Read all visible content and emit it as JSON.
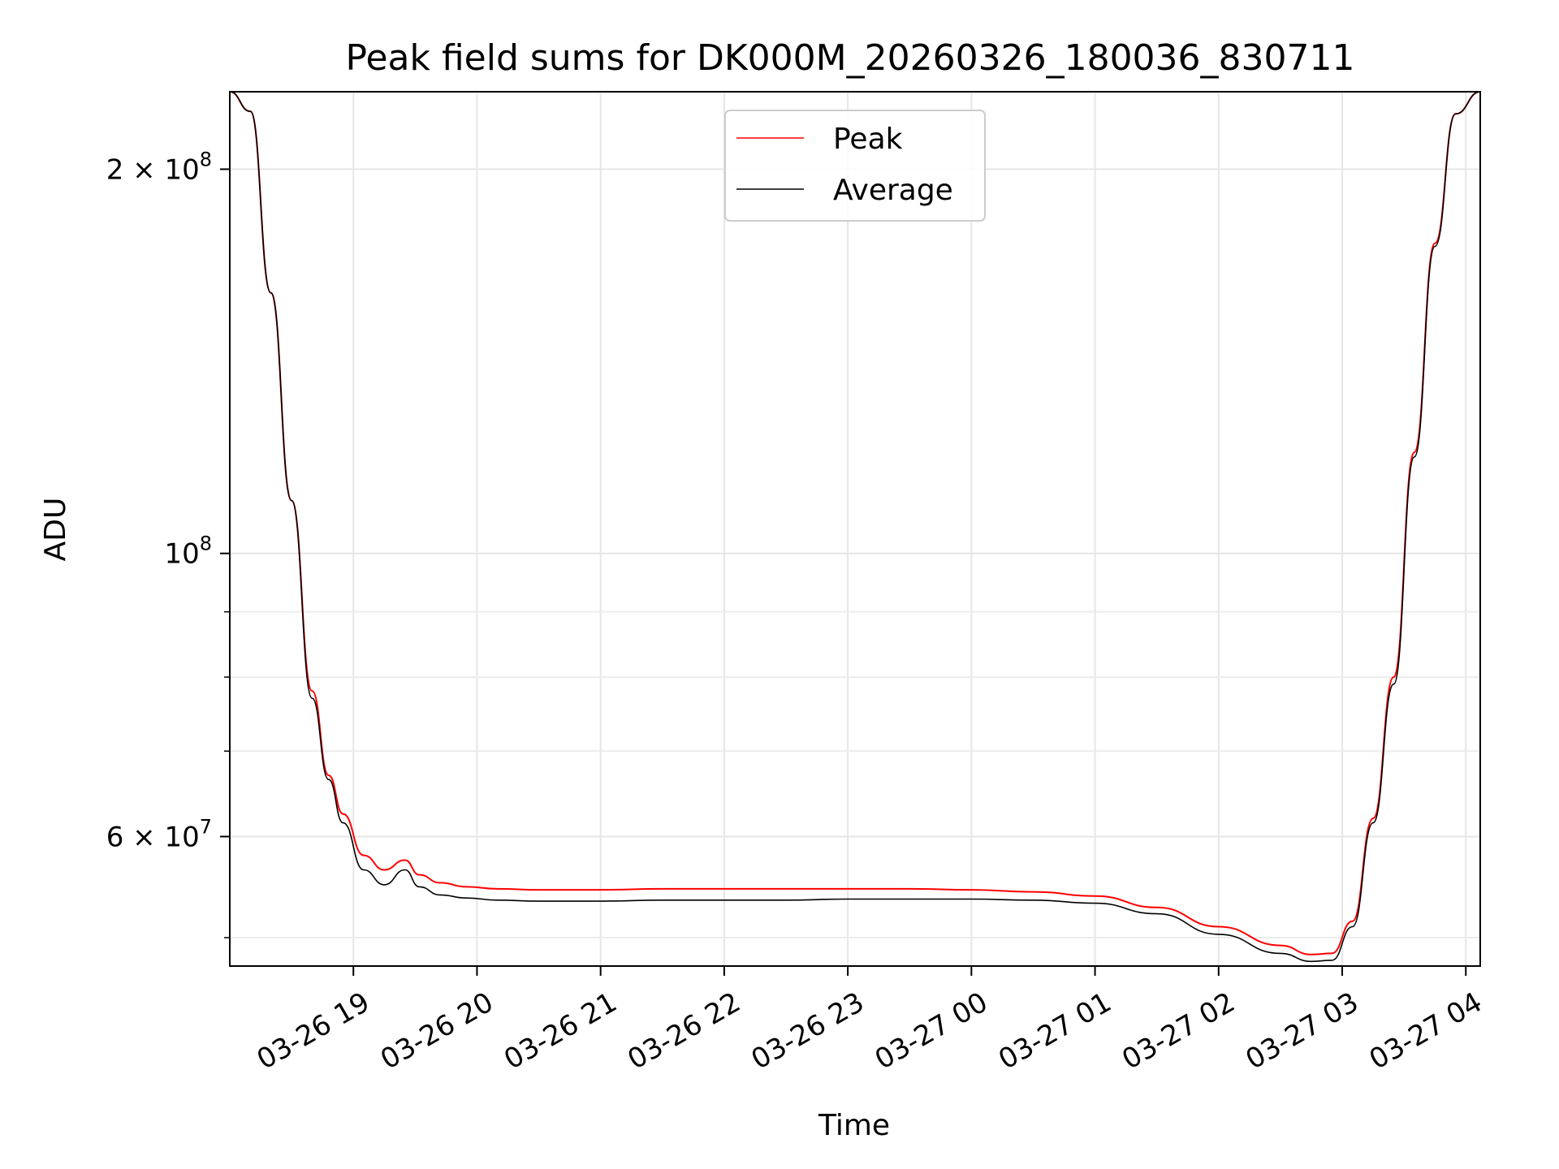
{
  "chart_data": {
    "type": "line",
    "title": "Peak field sums for DK000M_20260326_180036_830711",
    "xlabel": "Time",
    "ylabel": "ADU",
    "yscale": "log",
    "ylim": [
      47500000,
      230000000
    ],
    "xlim": [
      "2026-03-26 18:00",
      "2026-03-27 04:07"
    ],
    "grid": true,
    "legend_position": "upper center",
    "x_ticks": [
      "03-26 19",
      "03-26 20",
      "03-26 21",
      "03-26 22",
      "03-26 23",
      "03-27 00",
      "03-27 01",
      "03-27 02",
      "03-27 03",
      "03-27 04"
    ],
    "y_ticks": [
      {
        "value": 200000000,
        "mantissa": "2",
        "exp": "8"
      },
      {
        "value": 100000000,
        "mantissa": "",
        "exp": "8"
      },
      {
        "value": 60000000,
        "mantissa": "6",
        "exp": "7"
      }
    ],
    "y_minor_ticks": [
      50000000,
      70000000,
      80000000,
      90000000
    ],
    "series": [
      {
        "name": "Peak",
        "color": "#ff0000",
        "x": [
          "2026-03-26 18:00",
          "2026-03-26 18:10",
          "2026-03-26 18:20",
          "2026-03-26 18:30",
          "2026-03-26 18:40",
          "2026-03-26 18:48",
          "2026-03-26 18:55",
          "2026-03-26 19:05",
          "2026-03-26 19:15",
          "2026-03-26 19:25",
          "2026-03-26 19:32",
          "2026-03-26 19:42",
          "2026-03-26 19:55",
          "2026-03-26 20:10",
          "2026-03-26 20:30",
          "2026-03-26 21:00",
          "2026-03-26 21:30",
          "2026-03-26 22:00",
          "2026-03-26 22:30",
          "2026-03-26 23:00",
          "2026-03-26 23:30",
          "2026-03-27 00:00",
          "2026-03-27 00:30",
          "2026-03-27 01:00",
          "2026-03-27 01:30",
          "2026-03-27 02:00",
          "2026-03-27 02:30",
          "2026-03-27 02:45",
          "2026-03-27 02:55",
          "2026-03-27 03:05",
          "2026-03-27 03:15",
          "2026-03-27 03:25",
          "2026-03-27 03:35",
          "2026-03-27 03:45",
          "2026-03-27 03:55",
          "2026-03-27 04:07"
        ],
        "values": [
          230000000,
          222000000,
          160000000,
          110000000,
          78000000,
          67000000,
          62500000,
          58000000,
          56500000,
          57500000,
          56000000,
          55200000,
          54800000,
          54600000,
          54500000,
          54500000,
          54600000,
          54600000,
          54600000,
          54600000,
          54600000,
          54500000,
          54300000,
          53900000,
          52800000,
          51000000,
          49300000,
          48500000,
          48600000,
          51500000,
          62000000,
          80000000,
          120000000,
          175000000,
          221000000,
          230000000
        ]
      },
      {
        "name": "Average",
        "color": "#000000",
        "x": [
          "2026-03-26 18:00",
          "2026-03-26 18:10",
          "2026-03-26 18:20",
          "2026-03-26 18:30",
          "2026-03-26 18:40",
          "2026-03-26 18:48",
          "2026-03-26 18:55",
          "2026-03-26 19:05",
          "2026-03-26 19:15",
          "2026-03-26 19:25",
          "2026-03-26 19:32",
          "2026-03-26 19:42",
          "2026-03-26 19:55",
          "2026-03-26 20:10",
          "2026-03-26 20:30",
          "2026-03-26 21:00",
          "2026-03-26 21:30",
          "2026-03-26 22:00",
          "2026-03-26 22:30",
          "2026-03-26 23:00",
          "2026-03-26 23:30",
          "2026-03-27 00:00",
          "2026-03-27 00:30",
          "2026-03-27 01:00",
          "2026-03-27 01:30",
          "2026-03-27 02:00",
          "2026-03-27 02:30",
          "2026-03-27 02:45",
          "2026-03-27 02:55",
          "2026-03-27 03:05",
          "2026-03-27 03:15",
          "2026-03-27 03:25",
          "2026-03-27 03:35",
          "2026-03-27 03:45",
          "2026-03-27 03:55",
          "2026-03-27 04:07"
        ],
        "values": [
          230000000,
          222000000,
          160000000,
          110000000,
          77000000,
          66500000,
          61500000,
          56500000,
          55000000,
          56500000,
          54800000,
          54000000,
          53700000,
          53500000,
          53400000,
          53400000,
          53500000,
          53500000,
          53500000,
          53600000,
          53600000,
          53600000,
          53500000,
          53200000,
          52200000,
          50300000,
          48600000,
          47900000,
          48000000,
          51000000,
          61500000,
          79000000,
          119000000,
          174000000,
          221000000,
          230000000
        ]
      }
    ]
  }
}
